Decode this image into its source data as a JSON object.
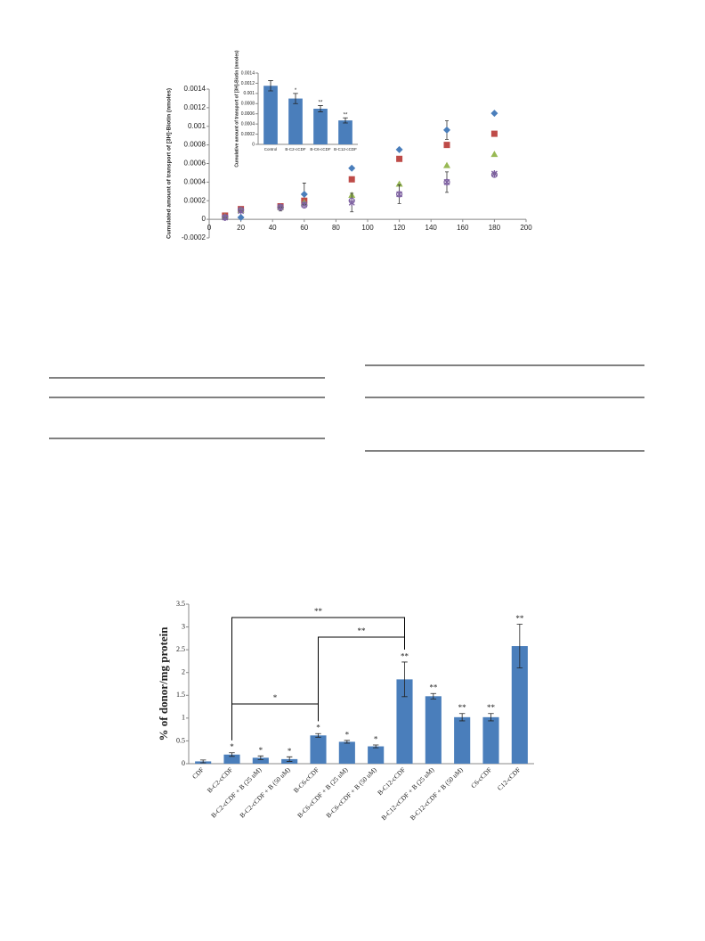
{
  "chart_data": [
    {
      "type": "scatter",
      "y_label": "Cumulated amount of transport of [3H]-Biotin (nmoles)",
      "x": [
        10,
        20,
        45,
        60,
        90,
        120,
        150,
        180
      ],
      "xlim": [
        0,
        200
      ],
      "xticks": [
        0,
        20,
        40,
        60,
        80,
        100,
        120,
        140,
        160,
        180,
        200
      ],
      "ylim": [
        -0.0002,
        0.0014
      ],
      "yticks": [
        -0.0002,
        0,
        0.0002,
        0.0004,
        0.0006,
        0.0008,
        0.001,
        0.0012,
        0.0014
      ],
      "series": [
        {
          "color": "#4a7ebb",
          "marker": "diamond",
          "values": [
            3e-05,
            2e-05,
            0.00013,
            0.00027,
            0.00055,
            0.00075,
            0.00096,
            0.00114
          ],
          "errors": [
            0,
            0,
            4e-05,
            0.00012,
            0,
            0,
            0.0001,
            0
          ]
        },
        {
          "color": "#be4b48",
          "marker": "square",
          "values": [
            4e-05,
            0.00011,
            0.00014,
            0.0002,
            0.00043,
            0.00065,
            0.0008,
            0.00092
          ]
        },
        {
          "color": "#98b954",
          "marker": "triangle",
          "values": [
            3e-05,
            0.0001,
            0.00013,
            0.00018,
            0.00026,
            0.00038,
            0.00058,
            0.0007
          ]
        },
        {
          "color": "#7d60a0",
          "marker": "x",
          "values": [
            2e-05,
            9e-05,
            0.00013,
            0.00016,
            0.00018,
            0.00027,
            0.0004,
            0.00049
          ],
          "errors": [
            0,
            0,
            0,
            0,
            0.0001,
            0.0001,
            0.00011,
            0
          ]
        },
        {
          "color": "#7d60a0",
          "marker": "circle",
          "values": [
            2e-05,
            0.0001,
            0.00013,
            0.00015,
            0.0002,
            0.00027,
            0.0004,
            0.00048
          ]
        }
      ]
    },
    {
      "type": "bar",
      "y_label": "Cumulative amount of transport of [3H]-Biotin (nmoles)",
      "categories": [
        "Control",
        "B-C2-cCDF",
        "B-C6-cCDF",
        "B-C12-cCDF"
      ],
      "values": [
        0.00115,
        0.0009,
        0.0007,
        0.00047
      ],
      "errors": [
        0.0001,
        0.0001,
        6e-05,
        5e-05
      ],
      "significance": [
        null,
        "*",
        "**",
        "**"
      ],
      "color": "#4a7ebb",
      "ylim": [
        0,
        0.0014
      ],
      "yticks": [
        0,
        0.0002,
        0.0004,
        0.0006,
        0.0008,
        0.001,
        0.0012,
        0.0014
      ]
    },
    {
      "type": "bar",
      "y_label": "% of donor/mg protein",
      "categories": [
        "CDF",
        "B-C2-cCDF",
        "B-C2-cCDF + B (25 uM)",
        "B-C2-cCDF + B (50 uM)",
        "B-C6-cCDF",
        "B-C6-cCDF + B (25 uM)",
        "B-C6-cCDF + B (50 uM)",
        "B-C12-cCDF",
        "B-C12-cCDF + B (25 uM)",
        "B-C12-cCDF + B (50 uM)",
        "C6-cCDF",
        "C12-cCDF"
      ],
      "values": [
        0.05,
        0.2,
        0.13,
        0.1,
        0.62,
        0.48,
        0.38,
        1.85,
        1.48,
        1.02,
        1.02,
        2.58
      ],
      "errors": [
        0.03,
        0.04,
        0.04,
        0.05,
        0.04,
        0.03,
        0.03,
        0.38,
        0.06,
        0.08,
        0.08,
        0.48
      ],
      "significance": [
        null,
        "*",
        "*",
        "*",
        "*",
        "*",
        "*",
        "**",
        "**",
        "**",
        "**",
        "**"
      ],
      "brackets": [
        {
          "from": "B-C2-cCDF",
          "to": "B-C12-cCDF",
          "label": "**"
        },
        {
          "from": "B-C6-cCDF",
          "to": "B-C12-cCDF",
          "label": "**"
        },
        {
          "from": "B-C2-cCDF",
          "to": "B-C6-cCDF",
          "label": "*"
        }
      ],
      "color": "#4a7ebb",
      "ylim": [
        0,
        3.5
      ],
      "yticks": [
        0,
        0.5,
        1,
        1.5,
        2,
        2.5,
        3,
        3.5
      ]
    }
  ]
}
